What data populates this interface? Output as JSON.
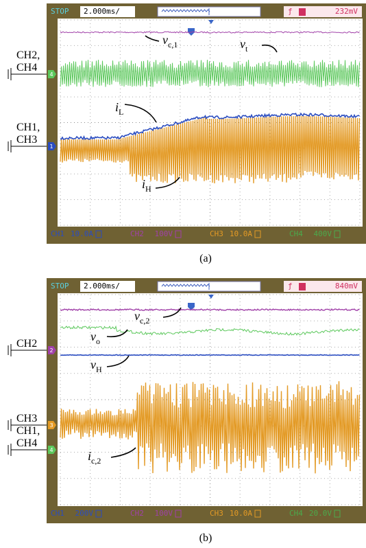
{
  "panels": [
    {
      "header": {
        "status": "STOP",
        "timebase": "2.000ms/",
        "trigger": "232mV"
      },
      "inputs": [
        {
          "lines": [
            "CH2,",
            "CH4"
          ],
          "marker": "4"
        },
        {
          "lines": [
            "CH1,",
            "CH3"
          ],
          "marker": "1"
        }
      ],
      "annotations": [
        {
          "base": "v",
          "sub": "c,1"
        },
        {
          "base": "v",
          "sub": "t"
        },
        {
          "base": "i",
          "sub": "L"
        },
        {
          "base": "i",
          "sub": "H"
        }
      ],
      "footer": [
        {
          "channel": "CH1",
          "scale": "10.0A"
        },
        {
          "channel": "CH2",
          "scale": "100V"
        },
        {
          "channel": "CH3",
          "scale": "10.0A"
        },
        {
          "channel": "CH4",
          "scale": "400V"
        }
      ],
      "caption": "(a)"
    },
    {
      "header": {
        "status": "STOP",
        "timebase": "2.000ms/",
        "trigger": "840mV"
      },
      "inputs": [
        {
          "lines": [
            "CH2"
          ],
          "marker": "2"
        },
        {
          "lines": [
            "CH3"
          ],
          "marker": "3"
        },
        {
          "lines": [
            "CH1,",
            "CH4"
          ],
          "marker": "4"
        }
      ],
      "annotations": [
        {
          "base": "v",
          "sub": "c,2"
        },
        {
          "base": "v",
          "sub": "o"
        },
        {
          "base": "v",
          "sub": "H"
        },
        {
          "base": "i",
          "sub": "c,2"
        }
      ],
      "footer": [
        {
          "channel": "CH1",
          "scale": "200V"
        },
        {
          "channel": "CH2",
          "scale": "100V"
        },
        {
          "channel": "CH3",
          "scale": "10.0A"
        },
        {
          "channel": "CH4",
          "scale": "20.0V"
        }
      ],
      "caption": "(b)"
    }
  ]
}
